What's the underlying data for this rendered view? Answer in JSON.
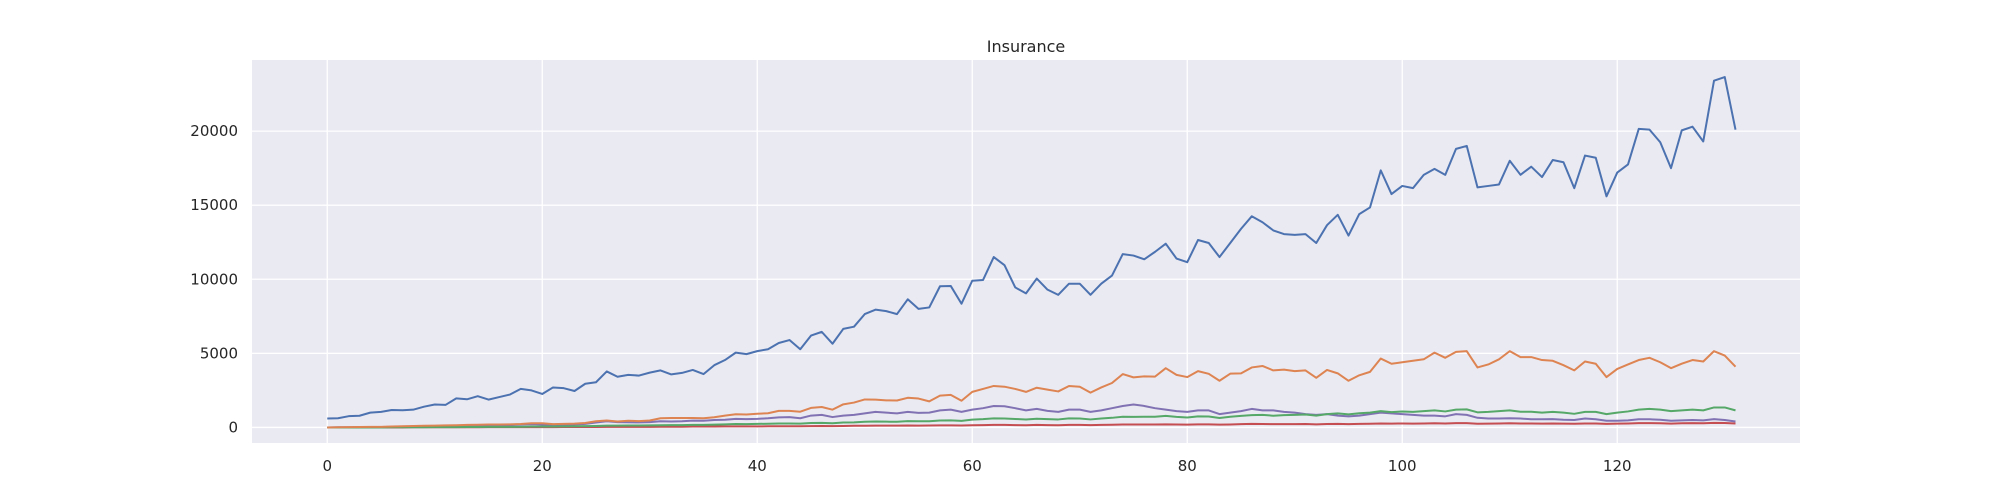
{
  "chart_data": {
    "type": "line",
    "title": "Insurance",
    "xlabel": "",
    "ylabel": "",
    "xlim": [
      -7,
      137
    ],
    "ylim": [
      -1050,
      24800
    ],
    "grid": true,
    "x_ticks": [
      0,
      20,
      40,
      60,
      80,
      100,
      120
    ],
    "y_ticks": [
      0,
      5000,
      10000,
      15000,
      20000
    ],
    "x_tick_labels": [
      "0",
      "20",
      "40",
      "60",
      "80",
      "100",
      "120"
    ],
    "y_tick_labels": [
      "0",
      "5000",
      "10000",
      "15000",
      "20000"
    ],
    "colors": {
      "background": "#eaeaf2",
      "grid": "#ffffff",
      "series": [
        "#4c72b0",
        "#dd8452",
        "#55a868",
        "#8172b3",
        "#c44e52"
      ]
    },
    "series": [
      {
        "values": [
          600,
          620,
          760,
          790,
          1000,
          1050,
          1180,
          1160,
          1200,
          1400,
          1550,
          1520,
          1960,
          1900,
          2110,
          1880,
          2050,
          2220,
          2600,
          2500,
          2260,
          2700,
          2650,
          2460,
          2950,
          3050,
          3780,
          3420,
          3550,
          3500,
          3700,
          3850,
          3580,
          3680,
          3880,
          3600,
          4200,
          4550,
          5050,
          4950,
          5150,
          5280,
          5700,
          5900,
          5280,
          6200,
          6450,
          5650,
          6650,
          6800,
          7650,
          7950,
          7850,
          7650,
          8650,
          8000,
          8100,
          9530,
          9550,
          8350,
          9900,
          9950,
          11500,
          10950,
          9450,
          9050,
          10050,
          9300,
          8950,
          9700,
          9700,
          8950,
          9700,
          10250,
          11700,
          11600,
          11350,
          11850,
          12400,
          11400,
          11150,
          12650,
          12450,
          11500,
          12450,
          13400,
          14250,
          13850,
          13300,
          13050,
          13000,
          13050,
          12450,
          13650,
          14350,
          12950,
          14400,
          14850,
          17350,
          15750,
          16300,
          16150,
          17050,
          17450,
          17050,
          18800,
          19000,
          16200,
          16300,
          16400,
          18000,
          17050,
          17600,
          16900,
          18050,
          17900,
          16150,
          18350,
          18200,
          15600,
          17200,
          17750,
          20150,
          20100,
          19250,
          17500,
          20050,
          20300,
          19300,
          23400,
          23650,
          20100
        ]
      },
      {
        "values": [
          0,
          10,
          20,
          30,
          40,
          40,
          60,
          80,
          100,
          110,
          120,
          140,
          150,
          170,
          180,
          200,
          200,
          210,
          230,
          280,
          280,
          220,
          240,
          260,
          300,
          420,
          470,
          400,
          450,
          430,
          470,
          620,
          640,
          640,
          640,
          620,
          690,
          800,
          890,
          870,
          920,
          960,
          1120,
          1120,
          1060,
          1320,
          1380,
          1200,
          1560,
          1680,
          1890,
          1880,
          1830,
          1820,
          2000,
          1950,
          1760,
          2150,
          2200,
          1800,
          2400,
          2600,
          2800,
          2750,
          2600,
          2400,
          2680,
          2550,
          2430,
          2800,
          2750,
          2350,
          2700,
          3000,
          3600,
          3380,
          3450,
          3430,
          4000,
          3550,
          3400,
          3800,
          3620,
          3150,
          3630,
          3650,
          4050,
          4150,
          3850,
          3900,
          3800,
          3850,
          3350,
          3880,
          3650,
          3150,
          3520,
          3750,
          4650,
          4300,
          4400,
          4500,
          4600,
          5050,
          4700,
          5100,
          5150,
          4050,
          4250,
          4600,
          5150,
          4750,
          4750,
          4550,
          4500,
          4200,
          3850,
          4450,
          4300,
          3400,
          3950,
          4250,
          4550,
          4700,
          4400,
          4000,
          4300,
          4550,
          4450,
          5150,
          4850,
          4100
        ]
      },
      {
        "values": [
          0,
          0,
          0,
          0,
          0,
          0,
          10,
          10,
          10,
          10,
          20,
          20,
          20,
          30,
          30,
          40,
          40,
          40,
          50,
          60,
          60,
          60,
          70,
          80,
          90,
          100,
          120,
          120,
          130,
          130,
          140,
          150,
          160,
          160,
          170,
          170,
          190,
          210,
          230,
          220,
          240,
          250,
          270,
          270,
          260,
          300,
          310,
          280,
          330,
          340,
          380,
          400,
          390,
          380,
          430,
          420,
          420,
          470,
          480,
          440,
          530,
          560,
          610,
          600,
          570,
          540,
          590,
          560,
          540,
          610,
          600,
          540,
          600,
          650,
          720,
          710,
          720,
          720,
          780,
          710,
          670,
          750,
          740,
          640,
          720,
          780,
          830,
          850,
          790,
          830,
          850,
          870,
          800,
          900,
          950,
          880,
          960,
          1000,
          1100,
          1030,
          1080,
          1050,
          1100,
          1150,
          1080,
          1200,
          1220,
          1020,
          1050,
          1100,
          1150,
          1060,
          1060,
          1000,
          1050,
          1000,
          920,
          1050,
          1050,
          900,
          1000,
          1080,
          1200,
          1250,
          1200,
          1100,
          1150,
          1200,
          1150,
          1350,
          1350,
          1150
        ]
      },
      {
        "values": [
          0,
          10,
          10,
          20,
          20,
          30,
          40,
          50,
          60,
          70,
          80,
          90,
          100,
          110,
          130,
          150,
          140,
          160,
          200,
          220,
          200,
          190,
          210,
          200,
          240,
          330,
          420,
          360,
          350,
          340,
          360,
          420,
          400,
          420,
          460,
          450,
          500,
          520,
          580,
          560,
          580,
          620,
          680,
          700,
          620,
          800,
          850,
          700,
          800,
          850,
          950,
          1050,
          1000,
          950,
          1050,
          980,
          1000,
          1150,
          1200,
          1050,
          1200,
          1300,
          1450,
          1430,
          1300,
          1150,
          1250,
          1120,
          1050,
          1200,
          1200,
          1050,
          1150,
          1300,
          1450,
          1550,
          1450,
          1300,
          1200,
          1100,
          1050,
          1150,
          1150,
          900,
          1000,
          1100,
          1250,
          1150,
          1150,
          1050,
          1000,
          900,
          850,
          900,
          800,
          750,
          800,
          900,
          1000,
          950,
          900,
          850,
          800,
          800,
          750,
          900,
          850,
          650,
          600,
          600,
          620,
          600,
          550,
          550,
          560,
          520,
          500,
          600,
          550,
          450,
          450,
          480,
          550,
          550,
          520,
          450,
          480,
          500,
          480,
          560,
          500,
          400
        ]
      },
      {
        "values": [
          0,
          0,
          0,
          0,
          0,
          0,
          0,
          0,
          10,
          10,
          10,
          10,
          10,
          10,
          10,
          20,
          20,
          20,
          20,
          20,
          20,
          20,
          30,
          30,
          30,
          30,
          40,
          40,
          40,
          40,
          40,
          50,
          50,
          50,
          60,
          60,
          60,
          70,
          70,
          70,
          70,
          80,
          80,
          80,
          80,
          90,
          100,
          90,
          100,
          110,
          110,
          120,
          120,
          120,
          130,
          120,
          130,
          140,
          140,
          130,
          150,
          160,
          170,
          170,
          160,
          150,
          170,
          160,
          150,
          170,
          170,
          160,
          170,
          180,
          200,
          200,
          200,
          200,
          210,
          200,
          190,
          210,
          210,
          190,
          200,
          220,
          240,
          230,
          220,
          220,
          220,
          230,
          210,
          230,
          240,
          220,
          240,
          250,
          270,
          260,
          270,
          260,
          270,
          280,
          270,
          290,
          290,
          250,
          260,
          270,
          280,
          270,
          270,
          260,
          270,
          260,
          250,
          270,
          270,
          240,
          260,
          270,
          290,
          290,
          280,
          260,
          280,
          290,
          280,
          310,
          300,
          270
        ]
      }
    ]
  }
}
